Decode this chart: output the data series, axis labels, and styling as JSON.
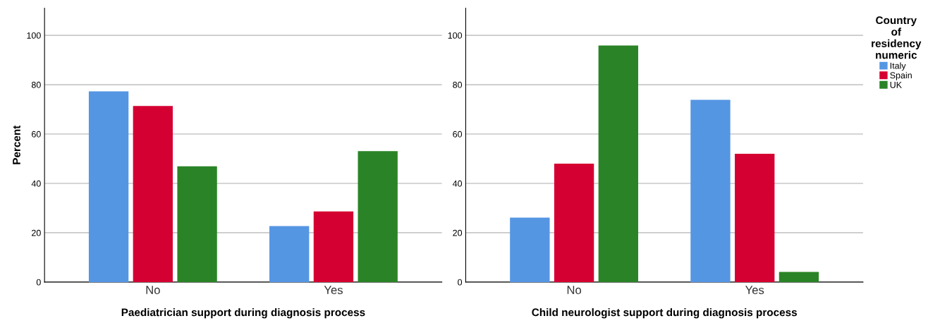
{
  "chart_data": [
    {
      "type": "bar",
      "xlabel": "Paediatrician support during diagnosis process",
      "ylabel": "Percent",
      "categories": [
        "No",
        "Yes"
      ],
      "ylim": [
        0,
        111
      ],
      "yticks": [
        0,
        20,
        40,
        60,
        80,
        100
      ],
      "grid": "y",
      "series": [
        {
          "color": "#5596e3",
          "values": [
            77.3,
            22.7
          ]
        },
        {
          "color": "#d50032",
          "values": [
            71.4,
            28.6
          ]
        },
        {
          "color": "#2a8427",
          "values": [
            46.9,
            53.1
          ]
        }
      ]
    },
    {
      "type": "bar",
      "xlabel": "Child neurologist support during diagnosis process",
      "categories": [
        "No",
        "Yes"
      ],
      "ylim": [
        0,
        111
      ],
      "yticks": [
        0,
        20,
        40,
        60,
        80,
        100
      ],
      "grid": "y",
      "legend": "right",
      "legend_title": "Country\nof\nresidency\nnumeric",
      "series": [
        {
          "name": "Italy",
          "color": "#5596e3",
          "values": [
            26.1,
            73.9
          ]
        },
        {
          "name": "Spain",
          "color": "#d50032",
          "values": [
            48.0,
            52.0
          ]
        },
        {
          "name": "UK",
          "color": "#2a8427",
          "values": [
            95.9,
            4.1
          ]
        }
      ]
    }
  ]
}
